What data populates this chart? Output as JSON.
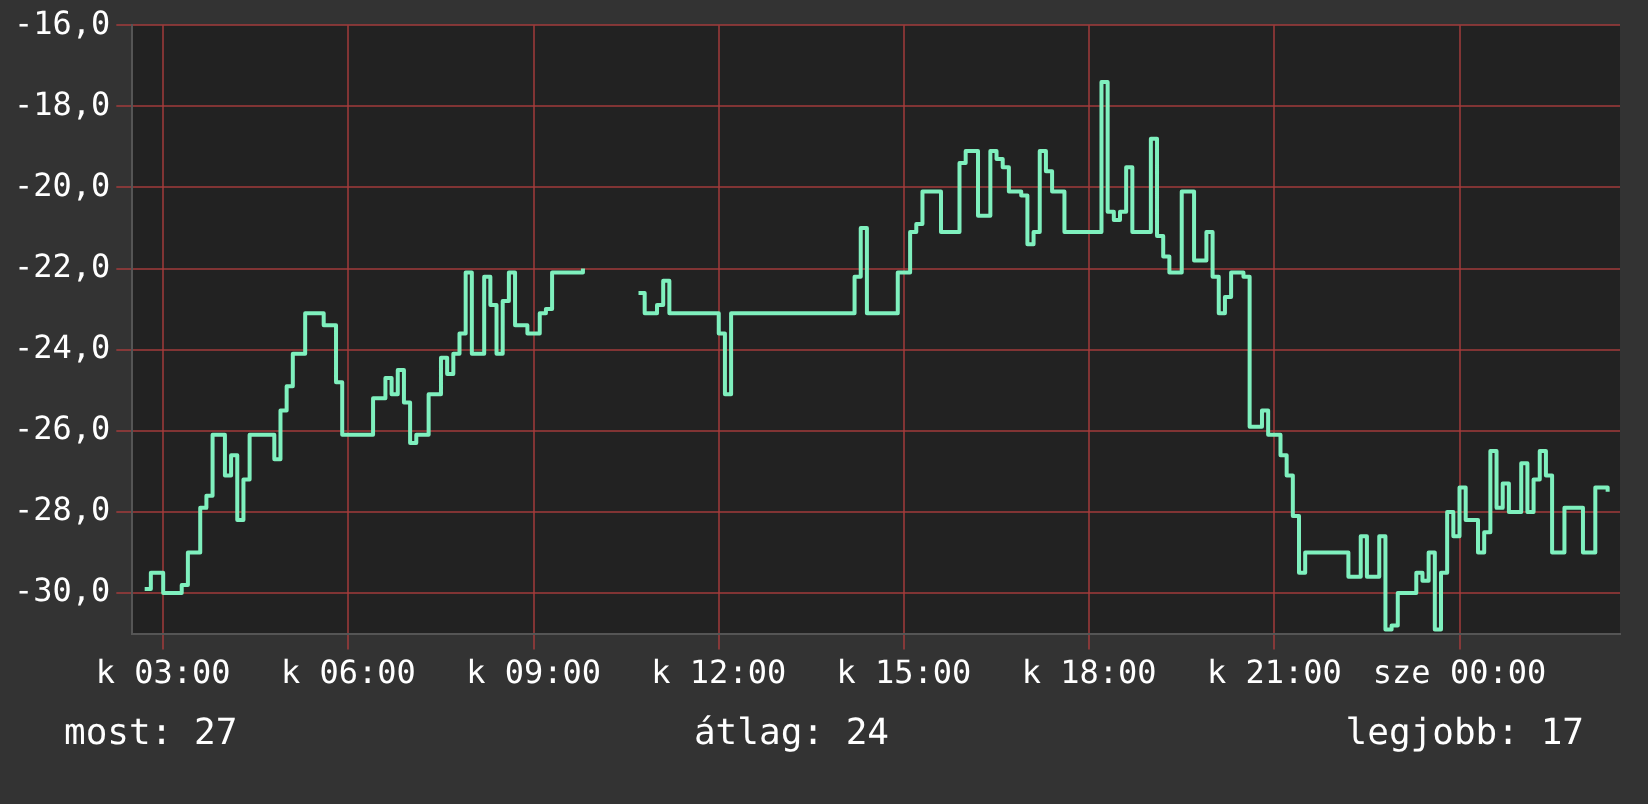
{
  "chart_data": {
    "type": "step",
    "annotations": [
      "most: 27",
      "átlag: 24",
      "legjobb: 17"
    ],
    "categories": [
      null,
      null,
      null,
      null,
      null,
      "k 03:00",
      null,
      null,
      null,
      null,
      null,
      null,
      null,
      null,
      null,
      null,
      null,
      null,
      null,
      null,
      null,
      null,
      null,
      null,
      null,
      null,
      null,
      null,
      null,
      null,
      null,
      null,
      null,
      null,
      null,
      "k 06:00",
      null,
      null,
      null,
      null,
      null,
      null,
      null,
      null,
      null,
      null,
      null,
      null,
      null,
      null,
      null,
      null,
      null,
      null,
      null,
      null,
      null,
      null,
      null,
      null,
      null,
      null,
      null,
      null,
      null,
      "k 09:00",
      null,
      null,
      null,
      null,
      null,
      null,
      null,
      null,
      null,
      null,
      null,
      null,
      null,
      null,
      null,
      null,
      null,
      null,
      null,
      null,
      null,
      null,
      null,
      null,
      null,
      null,
      null,
      null,
      null,
      "k 12:00",
      null,
      null,
      null,
      null,
      null,
      null,
      null,
      null,
      null,
      null,
      null,
      null,
      null,
      null,
      null,
      null,
      null,
      null,
      null,
      null,
      null,
      null,
      null,
      null,
      null,
      null,
      null,
      null,
      null,
      "k 15:00",
      null,
      null,
      null,
      null,
      null,
      null,
      null,
      null,
      null,
      null,
      null,
      null,
      null,
      null,
      null,
      null,
      null,
      null,
      null,
      null,
      null,
      null,
      null,
      null,
      null,
      null,
      null,
      null,
      null,
      "k 18:00",
      null,
      null,
      null,
      null,
      null,
      null,
      null,
      null,
      null,
      null,
      null,
      null,
      null,
      null,
      null,
      null,
      null,
      null,
      null,
      null,
      null,
      null,
      null,
      null,
      null,
      null,
      null,
      null,
      null,
      "k 21:00",
      null,
      null,
      null,
      null,
      null,
      null,
      null,
      null,
      null,
      null,
      null,
      null,
      null,
      null,
      null,
      null,
      null,
      null,
      null,
      null,
      null,
      null,
      null,
      null,
      null,
      null,
      null,
      null,
      null,
      "sze 00:00",
      null,
      null,
      null,
      null,
      null,
      null,
      null,
      null,
      null,
      null,
      null,
      null,
      null,
      null,
      null,
      null,
      null,
      null,
      null,
      null,
      null,
      null,
      null,
      null,
      null,
      null
    ],
    "ylim": [
      -31,
      -16
    ],
    "yticks": [
      {
        "value": -30,
        "label": "-30,0"
      },
      {
        "value": -28,
        "label": "-28,0"
      },
      {
        "value": -26,
        "label": "-26,0"
      },
      {
        "value": -24,
        "label": "-24,0"
      },
      {
        "value": -22,
        "label": "-22,0"
      },
      {
        "value": -20,
        "label": "-20,0"
      },
      {
        "value": -18,
        "label": "-18,0"
      },
      {
        "value": -16,
        "label": "-16,0"
      }
    ],
    "grid": true,
    "marker": "none",
    "series": [
      {
        "color": "#7ff0be",
        "values": [
          null,
          null,
          -29.9,
          -29.5,
          -29.5,
          -30.0,
          -30.0,
          -30.0,
          -29.8,
          -29.0,
          -29.0,
          -27.9,
          -27.6,
          -26.1,
          -26.1,
          -27.1,
          -26.6,
          -28.2,
          -27.2,
          -26.1,
          -26.1,
          -26.1,
          -26.1,
          -26.7,
          -25.5,
          -24.9,
          -24.1,
          -24.1,
          -23.1,
          -23.1,
          -23.1,
          -23.4,
          -23.4,
          -24.8,
          -26.1,
          -26.1,
          -26.1,
          -26.1,
          -26.1,
          -25.2,
          -25.2,
          -24.7,
          -25.1,
          -24.5,
          -25.3,
          -26.3,
          -26.1,
          -26.1,
          -25.1,
          -25.1,
          -24.2,
          -24.6,
          -24.1,
          -23.6,
          -22.1,
          -24.1,
          -24.1,
          -22.2,
          -22.9,
          -24.1,
          -22.8,
          -22.1,
          -23.4,
          -23.4,
          -23.6,
          -23.6,
          -23.1,
          -23.0,
          -22.1,
          -22.1,
          -22.1,
          -22.1,
          -22.1,
          -22.0,
          null,
          null,
          null,
          null,
          null,
          null,
          null,
          null,
          -22.6,
          -23.1,
          -23.1,
          -22.9,
          -22.3,
          -23.1,
          -23.1,
          -23.1,
          -23.1,
          -23.1,
          -23.1,
          -23.1,
          -23.1,
          -23.6,
          -25.1,
          -23.1,
          -23.1,
          -23.1,
          -23.1,
          -23.1,
          -23.1,
          -23.1,
          -23.1,
          -23.1,
          -23.1,
          -23.1,
          -23.1,
          -23.1,
          -23.1,
          -23.1,
          -23.1,
          -23.1,
          -23.1,
          -23.1,
          -23.1,
          -22.2,
          -21.0,
          -23.1,
          -23.1,
          -23.1,
          -23.1,
          -23.1,
          -22.1,
          -22.1,
          -21.1,
          -20.9,
          -20.1,
          -20.1,
          -20.1,
          -21.1,
          -21.1,
          -21.1,
          -19.4,
          -19.1,
          -19.1,
          -20.7,
          -20.7,
          -19.1,
          -19.3,
          -19.5,
          -20.1,
          -20.1,
          -20.2,
          -21.4,
          -21.1,
          -19.1,
          -19.6,
          -20.1,
          -20.1,
          -21.1,
          -21.1,
          -21.1,
          -21.1,
          -21.1,
          -21.1,
          -17.4,
          -20.6,
          -20.8,
          -20.6,
          -19.5,
          -21.1,
          -21.1,
          -21.1,
          -18.8,
          -21.2,
          -21.7,
          -22.1,
          -22.1,
          -20.1,
          -20.1,
          -21.8,
          -21.8,
          -21.1,
          -22.2,
          -23.1,
          -22.7,
          -22.1,
          -22.1,
          -22.2,
          -25.9,
          -25.9,
          -25.5,
          -26.1,
          -26.1,
          -26.6,
          -27.1,
          -28.1,
          -29.5,
          -29.0,
          -29.0,
          -29.0,
          -29.0,
          -29.0,
          -29.0,
          -29.0,
          -29.6,
          -29.6,
          -28.6,
          -29.6,
          -29.6,
          -28.6,
          -30.9,
          -30.8,
          -30.0,
          -30.0,
          -30.0,
          -29.5,
          -29.7,
          -29.0,
          -30.9,
          -29.5,
          -28.0,
          -28.6,
          -27.4,
          -28.2,
          -28.2,
          -29.0,
          -28.5,
          -26.5,
          -27.9,
          -27.3,
          -28.0,
          -28.0,
          -26.8,
          -28.0,
          -27.2,
          -26.5,
          -27.1,
          -29.0,
          -29.0,
          -27.9,
          -27.9,
          -27.9,
          -29.0,
          -29.0,
          -27.4,
          -27.4,
          -27.5,
          null,
          null
        ]
      }
    ]
  }
}
